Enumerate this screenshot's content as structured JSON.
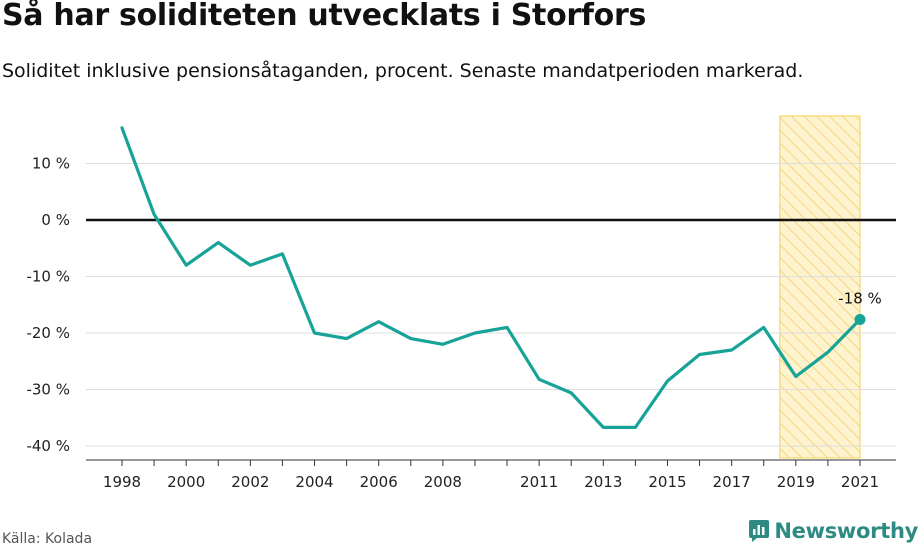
{
  "title": "Så har soliditeten utvecklats i Storfors",
  "subtitle": "Soliditet inklusive pensionsåtaganden, procent. Senaste mandatperioden markerad.",
  "source": "Källa: Kolada",
  "brand": {
    "name": "Newsworthy",
    "icon": "newsworthy-logo-icon"
  },
  "colors": {
    "line": "#17a398",
    "highlight_stroke": "#f7d66b",
    "highlight_fill": "#fdf3cf",
    "zero_line": "#111111",
    "grid": "#dddddd"
  },
  "chart_data": {
    "type": "line",
    "title": "Så har soliditeten utvecklats i Storfors",
    "subtitle": "Soliditet inklusive pensionsåtaganden, procent. Senaste mandatperioden markerad.",
    "x": [
      1998,
      1999,
      2000,
      2001,
      2002,
      2003,
      2004,
      2005,
      2006,
      2007,
      2008,
      2009,
      2010,
      2011,
      2012,
      2013,
      2014,
      2015,
      2016,
      2017,
      2018,
      2019,
      2020,
      2021
    ],
    "series": [
      {
        "values": [
          16.3,
          1,
          -8,
          -4,
          -8,
          -6,
          -20,
          -21,
          -18,
          -21,
          -22,
          -20,
          -19,
          -28.2,
          -30.6,
          -36.7,
          -36.7,
          -28.5,
          -23.8,
          -23,
          -19,
          -27.7,
          -23.4,
          -17.6
        ]
      }
    ],
    "x_ticks": [
      "1998",
      "2000",
      "2002",
      "2004",
      "2006",
      "2008",
      "2011",
      "2013",
      "2015",
      "2017",
      "2019",
      "2021"
    ],
    "y_ticks": [
      "10 %",
      "0 %",
      "-10 %",
      "-20 %",
      "-30 %",
      "-40 %"
    ],
    "y_tick_values": [
      10,
      0,
      -10,
      -20,
      -30,
      -40
    ],
    "x_range": [
      1998,
      2021
    ],
    "y_range": [
      -41.6,
      17.6
    ],
    "highlight_period": [
      2018.5,
      2021
    ],
    "end_label": "-18 %",
    "grid": true,
    "legend": "none"
  }
}
